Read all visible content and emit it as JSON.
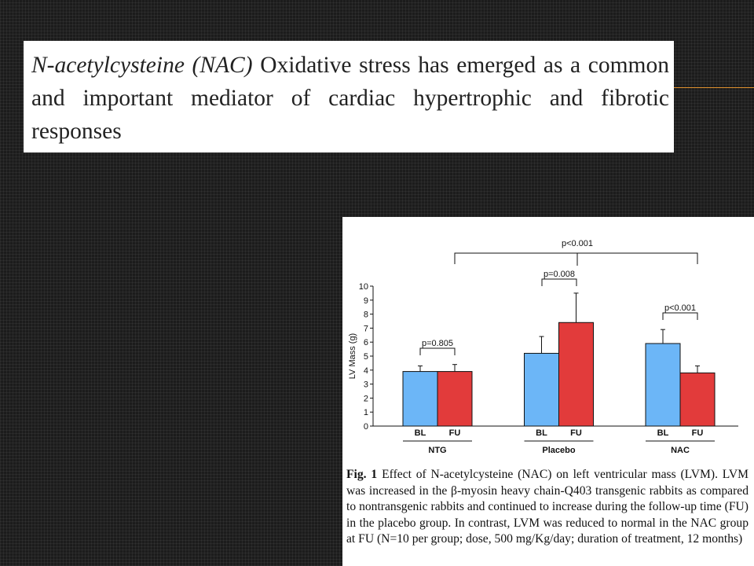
{
  "heading": {
    "italic": "N-acetylcysteine (NAC)",
    "text": "Oxidative stress has emerged as a common and important mediator of cardiac hypertrophic and fibrotic responses"
  },
  "chart_data": {
    "type": "bar",
    "ylabel": "LV Mass (g)",
    "categories": [
      "NTG",
      "Placebo",
      "NAC"
    ],
    "series": [
      {
        "name": "BL",
        "color": "#6cb6f7",
        "values": [
          3.9,
          5.2,
          5.9
        ],
        "errors": [
          0.4,
          1.2,
          1.0
        ]
      },
      {
        "name": "FU",
        "color": "#e23b3b",
        "values": [
          3.9,
          7.4,
          3.8
        ],
        "errors": [
          0.5,
          2.1,
          0.5
        ]
      }
    ],
    "ylim": [
      0,
      10
    ],
    "yticks": [
      0,
      1,
      2,
      3,
      4,
      5,
      6,
      7,
      8,
      9,
      10
    ],
    "annotations": [
      "p=0.805",
      "p=0.008",
      "p<0.001",
      "p<0.001"
    ]
  },
  "caption": {
    "label": "Fig. 1",
    "text": "Effect of N-acetylcysteine (NAC) on left ventricular mass (LVM). LVM was increased in the β-myosin heavy chain-Q403 transgenic rabbits as compared to nontransgenic rabbits and continued to increase during the follow-up time (FU) in the placebo group. In contrast, LVM was reduced to normal in the NAC group at FU (N=10 per group; dose, 500 mg/Kg/day; duration of treatment, 12 months)"
  }
}
